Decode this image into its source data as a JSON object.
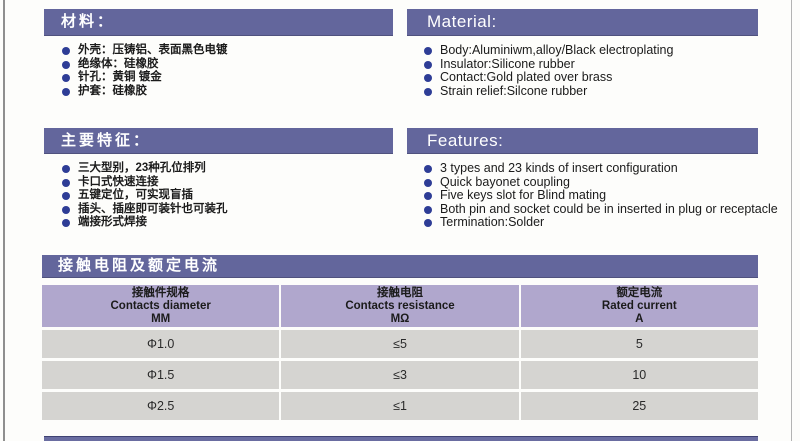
{
  "colors": {
    "header_bar": "#63669c",
    "table_header_bg": "#b0a7cd",
    "table_row_bg": "#d5d4d1",
    "bullet": "#2e3d96",
    "bar_text": "#ffffff"
  },
  "sections": {
    "materials_cn": {
      "title": "材料：",
      "items": [
        "外壳：压铸铝、表面黑色电镀",
        "绝缘体：硅橡胶",
        "针孔：黄铜 镀金",
        "护套：硅橡胶"
      ]
    },
    "materials_en": {
      "title": "Material:",
      "items": [
        "Body:Aluminiwm,alloy/Black  electroplating",
        "Insulator:Silicone  rubber",
        "Contact:Gold plated over brass",
        "Strain relief:Silcone rubber"
      ]
    },
    "features_cn": {
      "title": "主要特征：",
      "items": [
        "三大型别，23种孔位排列",
        "卡口式快速连接",
        "五键定位，可实现盲插",
        "插头、插座即可装针也可装孔",
        "端接形式焊接"
      ]
    },
    "features_en": {
      "title": "Features:",
      "items": [
        "3 types and 23 kinds of insert configuration",
        "Quick bayonet coupling",
        "Five keys slot for Blind mating",
        "Both pin and socket could be in inserted in plug or receptacle",
        "Termination:Solder"
      ]
    },
    "table_section": {
      "title": "接触电阻及额定电流"
    }
  },
  "table": {
    "columns": [
      {
        "cn": "接触件规格",
        "en": "Contacts diameter",
        "unit": "MM"
      },
      {
        "cn": "接触电阻",
        "en": "Contacts resistance",
        "unit": "MΩ"
      },
      {
        "cn": "额定电流",
        "en": "Rated current",
        "unit": "A"
      }
    ],
    "rows": [
      [
        "Φ1.0",
        "≤5",
        "5"
      ],
      [
        "Φ1.5",
        "≤3",
        "10"
      ],
      [
        "Φ2.5",
        "≤1",
        "25"
      ]
    ]
  }
}
